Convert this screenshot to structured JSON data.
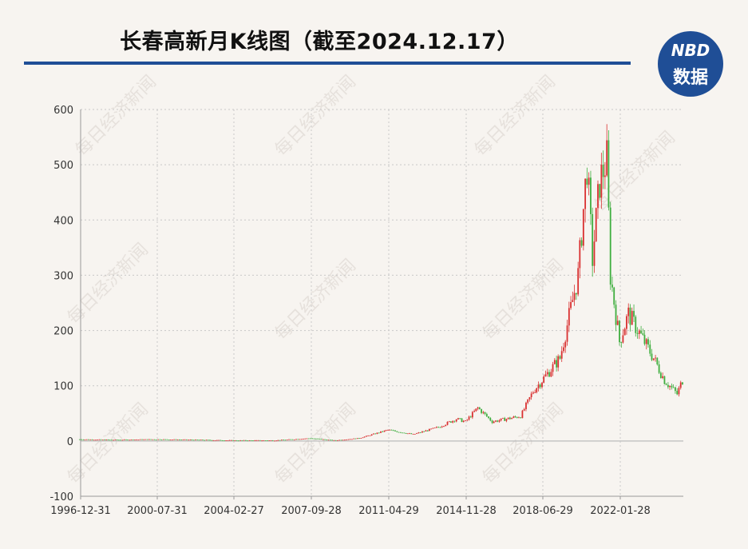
{
  "title": "长春高新月K线图（截至2024.12.17）",
  "logo": {
    "line1": "NBD",
    "line2": "数据"
  },
  "watermark": "每日经济新闻",
  "colors": {
    "up": "#d93030",
    "down": "#3fae3f",
    "rule": "#1f4e96",
    "grid": "#c8c8c8",
    "zero": "#bbbbbb"
  },
  "chart_data": {
    "type": "candlestick",
    "x_tick_labels": [
      "1996-12-31",
      "2000-07-31",
      "2004-02-27",
      "2007-09-28",
      "2011-04-29",
      "2014-11-28",
      "2018-06-29",
      "2022-01-28"
    ],
    "x_range": [
      "1996-12-31",
      "2024-12-17"
    ],
    "y_ticks": [
      -100,
      0,
      100,
      200,
      300,
      400,
      500,
      600
    ],
    "ylim": [
      -100,
      600
    ],
    "grid": true,
    "series": [
      {
        "date": "1996-12",
        "close": 3
      },
      {
        "date": "1998-06",
        "close": 2
      },
      {
        "date": "2000-07",
        "close": 3
      },
      {
        "date": "2002-06",
        "close": 2
      },
      {
        "date": "2004-02",
        "close": 1
      },
      {
        "date": "2006-01",
        "close": 1
      },
      {
        "date": "2007-09",
        "close": 5
      },
      {
        "date": "2008-10",
        "close": 1
      },
      {
        "date": "2009-12",
        "close": 5
      },
      {
        "date": "2011-04",
        "close": 20
      },
      {
        "date": "2012-06",
        "close": 12
      },
      {
        "date": "2013-08",
        "close": 25
      },
      {
        "date": "2014-06",
        "close": 40
      },
      {
        "date": "2014-11",
        "close": 35
      },
      {
        "date": "2015-06",
        "close": 60
      },
      {
        "date": "2016-02",
        "close": 35
      },
      {
        "date": "2017-06",
        "close": 45
      },
      {
        "date": "2018-01",
        "close": 90
      },
      {
        "date": "2018-06",
        "close": 110
      },
      {
        "date": "2019-04",
        "close": 150
      },
      {
        "date": "2020-02",
        "close": 300
      },
      {
        "date": "2020-07",
        "close": 500
      },
      {
        "date": "2020-10",
        "close": 330
      },
      {
        "date": "2021-02",
        "close": 470
      },
      {
        "date": "2021-06",
        "close": 510
      },
      {
        "date": "2021-08",
        "close": 300
      },
      {
        "date": "2022-01",
        "close": 180
      },
      {
        "date": "2022-06",
        "close": 230
      },
      {
        "date": "2023-01",
        "close": 190
      },
      {
        "date": "2023-08",
        "close": 150
      },
      {
        "date": "2024-02",
        "close": 110
      },
      {
        "date": "2024-09",
        "close": 85
      },
      {
        "date": "2024-12",
        "close": 110
      }
    ]
  }
}
